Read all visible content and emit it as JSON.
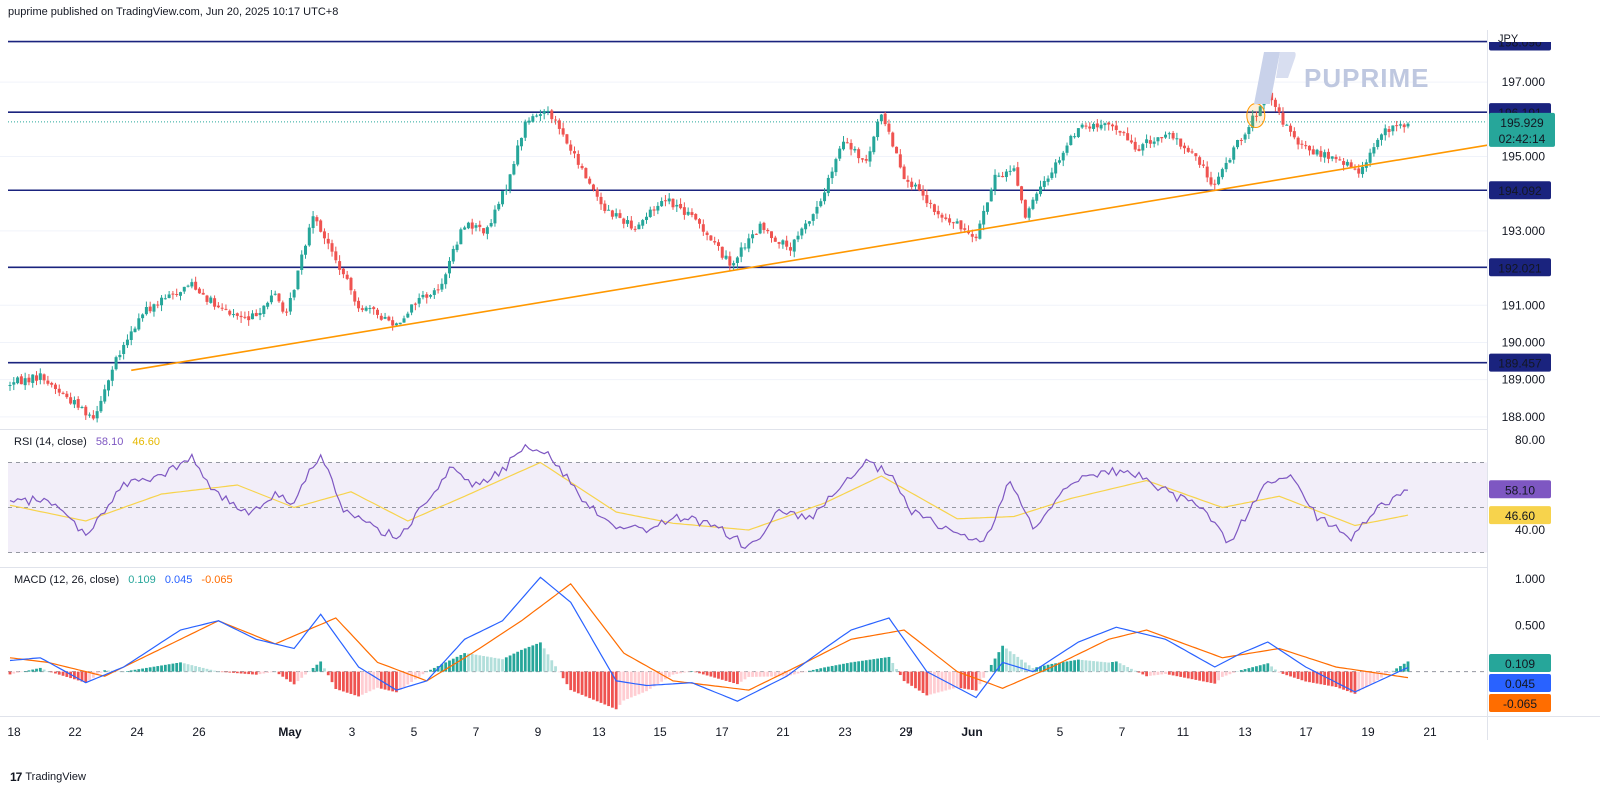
{
  "header": {
    "publisher": "puprime published on TradingView.com, Jun 20, 2025 10:17 UTC+8"
  },
  "brand": {
    "name": "PUPRIME"
  },
  "footer": {
    "logo": "17",
    "text": "TradingView"
  },
  "colors": {
    "up": "#26a69a",
    "down": "#ef5350",
    "hline": "#1a237e",
    "trend": "#ff9800",
    "rsi": "#7e57c2",
    "rsi_ma": "#f7d34c",
    "macd": "#2962ff",
    "signal": "#ff6d00",
    "hist_up_strong": "#26a69a",
    "hist_up_weak": "#b2dfdb",
    "hist_down_strong": "#ef5350",
    "hist_down_weak": "#ffcdd2"
  },
  "chart_data": [
    {
      "type": "candlestick",
      "currency": "JPY",
      "ylim": [
        187.7,
        198.4
      ],
      "y_ticks": [
        "188.000",
        "189.000",
        "190.000",
        "191.000",
        "193.000",
        "195.000",
        "197.000"
      ],
      "x_ticks": [
        "18",
        "22",
        "24",
        "26",
        "May",
        "3",
        "5",
        "7",
        "9",
        "13",
        "15",
        "17",
        "21",
        "23",
        "27",
        "29",
        "Jun",
        "5",
        "7",
        "11",
        "13",
        "17",
        "19",
        "21"
      ],
      "horizontal_levels": [
        {
          "label": "198.090",
          "value": 198.09
        },
        {
          "label": "196.191",
          "value": 196.191
        },
        {
          "label": "194.092",
          "value": 194.092
        },
        {
          "label": "192.021",
          "value": 192.021
        },
        {
          "label": "189.457",
          "value": 189.457
        }
      ],
      "current_price": {
        "label": "195.929",
        "value": 195.929,
        "countdown": "02:42:14"
      },
      "trendline": {
        "start": {
          "bar": 32,
          "value": 189.25
        },
        "end": {
          "bar": 369,
          "value": 194.95
        }
      },
      "anchors": [
        {
          "bar": 0,
          "value": 188.9
        },
        {
          "bar": 8,
          "value": 189.1
        },
        {
          "bar": 14,
          "value": 188.6
        },
        {
          "bar": 22,
          "value": 188.0
        },
        {
          "bar": 28,
          "value": 189.5
        },
        {
          "bar": 35,
          "value": 190.8
        },
        {
          "bar": 48,
          "value": 191.6
        },
        {
          "bar": 55,
          "value": 190.9
        },
        {
          "bar": 63,
          "value": 190.6
        },
        {
          "bar": 70,
          "value": 191.3
        },
        {
          "bar": 73,
          "value": 190.7
        },
        {
          "bar": 80,
          "value": 193.5
        },
        {
          "bar": 85,
          "value": 192.4
        },
        {
          "bar": 92,
          "value": 191.0
        },
        {
          "bar": 102,
          "value": 190.5
        },
        {
          "bar": 108,
          "value": 191.2
        },
        {
          "bar": 113,
          "value": 191.4
        },
        {
          "bar": 120,
          "value": 193.2
        },
        {
          "bar": 126,
          "value": 193.0
        },
        {
          "bar": 131,
          "value": 194.2
        },
        {
          "bar": 136,
          "value": 195.9
        },
        {
          "bar": 142,
          "value": 196.3
        },
        {
          "bar": 150,
          "value": 194.8
        },
        {
          "bar": 157,
          "value": 193.6
        },
        {
          "bar": 165,
          "value": 193.1
        },
        {
          "bar": 173,
          "value": 193.9
        },
        {
          "bar": 182,
          "value": 193.2
        },
        {
          "bar": 190,
          "value": 192.1
        },
        {
          "bar": 198,
          "value": 193.1
        },
        {
          "bar": 206,
          "value": 192.5
        },
        {
          "bar": 214,
          "value": 193.8
        },
        {
          "bar": 220,
          "value": 195.4
        },
        {
          "bar": 226,
          "value": 194.8
        },
        {
          "bar": 230,
          "value": 196.2
        },
        {
          "bar": 236,
          "value": 194.5
        },
        {
          "bar": 245,
          "value": 193.4
        },
        {
          "bar": 255,
          "value": 192.9
        },
        {
          "bar": 260,
          "value": 194.4
        },
        {
          "bar": 265,
          "value": 194.7
        },
        {
          "bar": 268,
          "value": 193.4
        },
        {
          "bar": 273,
          "value": 194.3
        },
        {
          "bar": 282,
          "value": 195.8
        },
        {
          "bar": 292,
          "value": 195.8
        },
        {
          "bar": 297,
          "value": 195.2
        },
        {
          "bar": 305,
          "value": 195.6
        },
        {
          "bar": 312,
          "value": 195.1
        },
        {
          "bar": 318,
          "value": 194.2
        },
        {
          "bar": 324,
          "value": 195.4
        },
        {
          "bar": 332,
          "value": 196.6
        },
        {
          "bar": 340,
          "value": 195.3
        },
        {
          "bar": 350,
          "value": 194.9
        },
        {
          "bar": 356,
          "value": 194.6
        },
        {
          "bar": 362,
          "value": 195.6
        },
        {
          "bar": 369,
          "value": 195.93
        }
      ]
    },
    {
      "type": "line",
      "name": "RSI",
      "label": "RSI (14, close)",
      "values": {
        "rsi": "58.10",
        "ma": "46.60"
      },
      "ylim": [
        24,
        84
      ],
      "y_ticks": [
        "80.00",
        "40.00"
      ],
      "band": [
        70,
        30
      ],
      "mid": 50,
      "series": [
        {
          "name": "RSI",
          "anchors": [
            {
              "bar": 0,
              "value": 52
            },
            {
              "bar": 10,
              "value": 54
            },
            {
              "bar": 20,
              "value": 38
            },
            {
              "bar": 30,
              "value": 60
            },
            {
              "bar": 40,
              "value": 64
            },
            {
              "bar": 48,
              "value": 72
            },
            {
              "bar": 55,
              "value": 55
            },
            {
              "bar": 63,
              "value": 48
            },
            {
              "bar": 70,
              "value": 56
            },
            {
              "bar": 75,
              "value": 52
            },
            {
              "bar": 82,
              "value": 75
            },
            {
              "bar": 88,
              "value": 48
            },
            {
              "bar": 95,
              "value": 42
            },
            {
              "bar": 103,
              "value": 36
            },
            {
              "bar": 110,
              "value": 54
            },
            {
              "bar": 117,
              "value": 68
            },
            {
              "bar": 122,
              "value": 60
            },
            {
              "bar": 130,
              "value": 66
            },
            {
              "bar": 136,
              "value": 79
            },
            {
              "bar": 143,
              "value": 72
            },
            {
              "bar": 152,
              "value": 52
            },
            {
              "bar": 160,
              "value": 42
            },
            {
              "bar": 168,
              "value": 40
            },
            {
              "bar": 176,
              "value": 46
            },
            {
              "bar": 186,
              "value": 42
            },
            {
              "bar": 195,
              "value": 32
            },
            {
              "bar": 203,
              "value": 48
            },
            {
              "bar": 211,
              "value": 45
            },
            {
              "bar": 219,
              "value": 58
            },
            {
              "bar": 226,
              "value": 70
            },
            {
              "bar": 232,
              "value": 65
            },
            {
              "bar": 238,
              "value": 48
            },
            {
              "bar": 248,
              "value": 40
            },
            {
              "bar": 257,
              "value": 34
            },
            {
              "bar": 264,
              "value": 62
            },
            {
              "bar": 270,
              "value": 40
            },
            {
              "bar": 280,
              "value": 62
            },
            {
              "bar": 290,
              "value": 66
            },
            {
              "bar": 299,
              "value": 64
            },
            {
              "bar": 307,
              "value": 55
            },
            {
              "bar": 315,
              "value": 50
            },
            {
              "bar": 322,
              "value": 34
            },
            {
              "bar": 330,
              "value": 58
            },
            {
              "bar": 337,
              "value": 65
            },
            {
              "bar": 345,
              "value": 46
            },
            {
              "bar": 354,
              "value": 36
            },
            {
              "bar": 360,
              "value": 48
            },
            {
              "bar": 369,
              "value": 58.1
            }
          ]
        },
        {
          "name": "RSI MA",
          "anchors": [
            {
              "bar": 0,
              "value": 51
            },
            {
              "bar": 20,
              "value": 44
            },
            {
              "bar": 40,
              "value": 56
            },
            {
              "bar": 60,
              "value": 60
            },
            {
              "bar": 75,
              "value": 50
            },
            {
              "bar": 90,
              "value": 57
            },
            {
              "bar": 105,
              "value": 44
            },
            {
              "bar": 120,
              "value": 55
            },
            {
              "bar": 140,
              "value": 70
            },
            {
              "bar": 160,
              "value": 48
            },
            {
              "bar": 175,
              "value": 43
            },
            {
              "bar": 195,
              "value": 40
            },
            {
              "bar": 215,
              "value": 52
            },
            {
              "bar": 230,
              "value": 64
            },
            {
              "bar": 250,
              "value": 45
            },
            {
              "bar": 265,
              "value": 46
            },
            {
              "bar": 280,
              "value": 54
            },
            {
              "bar": 300,
              "value": 62
            },
            {
              "bar": 320,
              "value": 50
            },
            {
              "bar": 335,
              "value": 55
            },
            {
              "bar": 355,
              "value": 42
            },
            {
              "bar": 369,
              "value": 46.6
            }
          ]
        }
      ]
    },
    {
      "type": "bar",
      "name": "MACD",
      "label": "MACD (12, 26, close)",
      "values": {
        "histogram": "0.109",
        "macd": "0.045",
        "signal": "-0.065"
      },
      "ylim": [
        -0.48,
        1.11
      ],
      "y_ticks": [
        "1.000",
        "0.500"
      ],
      "series": [
        {
          "name": "MACD",
          "anchors": [
            {
              "bar": 0,
              "value": 0.12
            },
            {
              "bar": 8,
              "value": 0.15
            },
            {
              "bar": 20,
              "value": -0.12
            },
            {
              "bar": 30,
              "value": 0.05
            },
            {
              "bar": 45,
              "value": 0.45
            },
            {
              "bar": 55,
              "value": 0.55
            },
            {
              "bar": 65,
              "value": 0.35
            },
            {
              "bar": 75,
              "value": 0.25
            },
            {
              "bar": 82,
              "value": 0.62
            },
            {
              "bar": 92,
              "value": 0.05
            },
            {
              "bar": 102,
              "value": -0.2
            },
            {
              "bar": 110,
              "value": -0.1
            },
            {
              "bar": 120,
              "value": 0.35
            },
            {
              "bar": 130,
              "value": 0.55
            },
            {
              "bar": 140,
              "value": 1.02
            },
            {
              "bar": 148,
              "value": 0.75
            },
            {
              "bar": 160,
              "value": -0.1
            },
            {
              "bar": 168,
              "value": -0.15
            },
            {
              "bar": 180,
              "value": -0.12
            },
            {
              "bar": 192,
              "value": -0.32
            },
            {
              "bar": 205,
              "value": -0.05
            },
            {
              "bar": 215,
              "value": 0.25
            },
            {
              "bar": 222,
              "value": 0.45
            },
            {
              "bar": 232,
              "value": 0.58
            },
            {
              "bar": 242,
              "value": 0.0
            },
            {
              "bar": 255,
              "value": -0.28
            },
            {
              "bar": 262,
              "value": 0.1
            },
            {
              "bar": 270,
              "value": 0.0
            },
            {
              "bar": 282,
              "value": 0.32
            },
            {
              "bar": 292,
              "value": 0.48
            },
            {
              "bar": 305,
              "value": 0.35
            },
            {
              "bar": 318,
              "value": 0.05
            },
            {
              "bar": 325,
              "value": 0.2
            },
            {
              "bar": 332,
              "value": 0.32
            },
            {
              "bar": 342,
              "value": 0.05
            },
            {
              "bar": 355,
              "value": -0.22
            },
            {
              "bar": 369,
              "value": 0.045
            }
          ]
        },
        {
          "name": "Signal",
          "anchors": [
            {
              "bar": 0,
              "value": 0.15
            },
            {
              "bar": 10,
              "value": 0.1
            },
            {
              "bar": 25,
              "value": -0.05
            },
            {
              "bar": 40,
              "value": 0.25
            },
            {
              "bar": 55,
              "value": 0.55
            },
            {
              "bar": 70,
              "value": 0.3
            },
            {
              "bar": 86,
              "value": 0.58
            },
            {
              "bar": 97,
              "value": 0.1
            },
            {
              "bar": 110,
              "value": -0.1
            },
            {
              "bar": 122,
              "value": 0.2
            },
            {
              "bar": 135,
              "value": 0.55
            },
            {
              "bar": 148,
              "value": 0.95
            },
            {
              "bar": 162,
              "value": 0.2
            },
            {
              "bar": 175,
              "value": -0.1
            },
            {
              "bar": 195,
              "value": -0.2
            },
            {
              "bar": 210,
              "value": 0.1
            },
            {
              "bar": 222,
              "value": 0.35
            },
            {
              "bar": 236,
              "value": 0.45
            },
            {
              "bar": 250,
              "value": 0.0
            },
            {
              "bar": 262,
              "value": -0.18
            },
            {
              "bar": 275,
              "value": 0.05
            },
            {
              "bar": 290,
              "value": 0.35
            },
            {
              "bar": 300,
              "value": 0.45
            },
            {
              "bar": 320,
              "value": 0.15
            },
            {
              "bar": 335,
              "value": 0.25
            },
            {
              "bar": 350,
              "value": 0.05
            },
            {
              "bar": 369,
              "value": -0.065
            }
          ]
        }
      ]
    }
  ]
}
